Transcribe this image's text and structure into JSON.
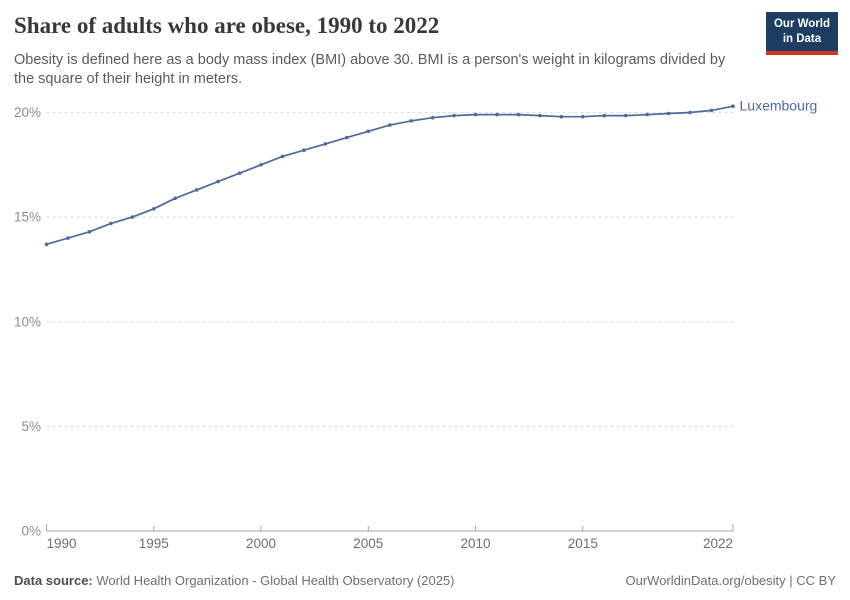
{
  "header": {
    "title": "Share of adults who are obese, 1990 to 2022",
    "subtitle": "Obesity is defined here as a body mass index (BMI) above 30. BMI is a person's weight in kilograms divided by the square of their height in meters.",
    "logo": {
      "line1": "Our World",
      "line2": "in Data"
    }
  },
  "chart_data": {
    "type": "line",
    "title": "Share of adults who are obese, 1990 to 2022",
    "x": [
      1990,
      1991,
      1992,
      1993,
      1994,
      1995,
      1996,
      1997,
      1998,
      1999,
      2000,
      2001,
      2002,
      2003,
      2004,
      2005,
      2006,
      2007,
      2008,
      2009,
      2010,
      2011,
      2012,
      2013,
      2014,
      2015,
      2016,
      2017,
      2018,
      2019,
      2020,
      2021,
      2022
    ],
    "series": [
      {
        "name": "Luxembourg",
        "color": "#4C6A9C",
        "values": [
          13.7,
          14.0,
          14.3,
          14.7,
          15.0,
          15.4,
          15.9,
          16.3,
          16.7,
          17.1,
          17.5,
          17.9,
          18.2,
          18.5,
          18.8,
          19.1,
          19.4,
          19.6,
          19.75,
          19.85,
          19.9,
          19.9,
          19.9,
          19.85,
          19.8,
          19.8,
          19.85,
          19.85,
          19.9,
          19.95,
          20.0,
          20.1,
          20.3
        ]
      }
    ],
    "x_ticks": [
      1990,
      1995,
      2000,
      2005,
      2010,
      2015,
      2022
    ],
    "y_ticks": [
      0,
      5,
      10,
      15,
      20
    ],
    "y_suffix": "%",
    "xlabel": "",
    "ylabel": "",
    "xlim": [
      1990,
      2022
    ],
    "ylim": [
      0,
      20
    ],
    "grid": "horizontal-dashed",
    "legend_position": "end-of-line"
  },
  "footer": {
    "source_label": "Data source:",
    "source_text": " World Health Organization - Global Health Observatory (2025)",
    "attribution": "OurWorldinData.org/obesity | CC BY"
  },
  "colors": {
    "line": "#4C6A9C",
    "grid": "#dcdcdc",
    "axis": "#a5a5a5",
    "logo_bg": "#1d3d63",
    "logo_stripe": "#d2352c"
  }
}
